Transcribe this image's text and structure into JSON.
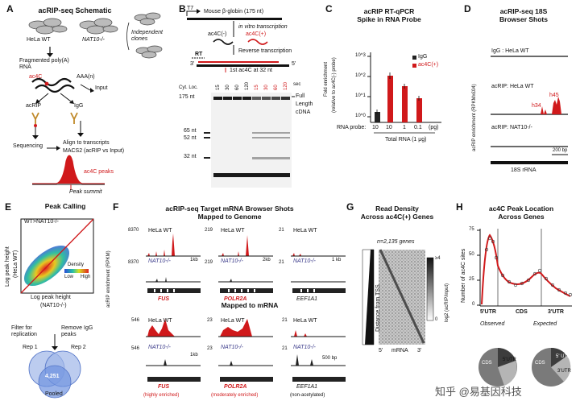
{
  "colors": {
    "red": "#d0191b",
    "black": "#111111",
    "gray": "#888888",
    "blue": "#3b6fd6"
  },
  "panelA": {
    "letter": "A",
    "title": "acRIP-seq Schematic",
    "hela": "HeLa WT",
    "nat10": "NAT10-/-",
    "clones": "Independent clones",
    "fragmented": "Fragmented poly(A) RNA",
    "ac4c": "ac4C",
    "aaa": "AAA(n)",
    "input": "Input",
    "acrip": "acRIP",
    "igg": "IgG",
    "sequencing": "Sequencing",
    "align": "Align to transcripts",
    "macs2": "MACS2 (acRIP vs Input)",
    "peaks": "ac4C peaks",
    "summit": "Peak summit"
  },
  "panelB": {
    "letter": "B",
    "t7": "T7",
    "globin": "Mouse β-globin (175 nt)",
    "invitro": "in vitro transcription",
    "minus": "ac4C(-)",
    "plus": "ac4C(+)",
    "rt": "RT",
    "reverse": "Reverse transcription",
    "three": "3'",
    "five": "5'",
    "first": "1st ac4C at 32 nt",
    "cytloc": "Cyt. Loc.",
    "lanes": [
      "15",
      "30",
      "60",
      "120",
      "15",
      "30",
      "60",
      "120"
    ],
    "sec": "sec",
    "nt175": "175 nt",
    "nt65": "65 nt",
    "nt52": "52 nt",
    "nt32": "32 nt",
    "full": "Full",
    "length": "Length",
    "cdna": "cDNA"
  },
  "panelC": {
    "letter": "C",
    "title1": "acRIP RT-qPCR",
    "title2": "Spike in RNA Probe",
    "ylabel": "Fold enrichment",
    "ylabel2": "(relative to ac4C(-) probe)",
    "legend": [
      "IgG",
      "ac4C(+)"
    ],
    "yticks": [
      "10^3",
      "10^2",
      "10^1",
      "10^0"
    ],
    "probe_label": "RNA probe:",
    "probe_vals": [
      "10",
      "10",
      "1",
      "0.1"
    ],
    "pg": "(pg)",
    "total": "Total RNA (1 μg)"
  },
  "panelD": {
    "letter": "D",
    "title1": "acRIP-seq 18S",
    "title2": "Browser Shots",
    "track1": "IgG : HeLa WT",
    "track2": "acRIP: HeLa WT",
    "track3": "acRIP: NAT10-/-",
    "h34": "h34",
    "h45": "h45",
    "scale": "200 bp",
    "rrna": "18S rRNA",
    "ylabel": "acRIP enrichment (RPKMx£04)"
  },
  "panelE": {
    "letter": "E",
    "title": "Peak Calling",
    "legend": "WT>NAT10-/-",
    "density": "Density",
    "low": "Low",
    "high": "High",
    "ylabel1": "Log peak height",
    "ylabel2": "(HeLa WT)",
    "xlabel1": "Log peak height",
    "xlabel2": "(NAT10-/-)",
    "filter": "Filter for replication",
    "remove": "Remove IgG peaks",
    "rep1": "Rep 1",
    "rep2": "Rep 2",
    "count": "4,251",
    "pooled": "Pooled"
  },
  "panelF": {
    "letter": "F",
    "title1": "acRIP-seq Target mRNA Browser Shots",
    "title2": "Mapped to Genome",
    "title3": "Mapped to mRNA",
    "ylabel": "acRIP enrichment (RPKM)",
    "hela": "HeLa WT",
    "nat10": "NAT10-/-",
    "g1": {
      "max": "8370",
      "scale": "1kb",
      "name": "FUS"
    },
    "g2": {
      "max": "219",
      "scale": "2kb",
      "name": "POLR2A"
    },
    "g3": {
      "max": "21",
      "scale": "1 kb",
      "name": "EEF1A1"
    },
    "m1": {
      "max": "546",
      "scale": "1kb",
      "name": "FUS",
      "note": "(highly enriched)"
    },
    "m2": {
      "max": "23",
      "scale": "",
      "name": "POLR2A",
      "note": "(moderately enriched)"
    },
    "m3": {
      "max": "21",
      "scale": "500 bp",
      "name": "EEF1A1",
      "note": "(non-acetylated)"
    }
  },
  "panelG": {
    "letter": "G",
    "title1": "Read Density",
    "title2": "Across ac4C(+) Genes",
    "n": "n=2,135 genes",
    "ylabel": "Distance from TSS",
    "cbar_top": "≥4",
    "cbar_zero": "0",
    "cbar_label": "log2 (acRIP/input)",
    "five": "5'",
    "mrna": "mRNA",
    "three": "3'"
  },
  "panelH": {
    "letter": "H",
    "title1": "ac4C Peak Location",
    "title2": "Across Genes",
    "ylabel": "Number of ac4C sites",
    "yticks": [
      "75",
      "50",
      "25",
      "0"
    ],
    "x1": "5'UTR",
    "x2": "CDS",
    "x3": "3'UTR",
    "observed": "Observed",
    "expected": "Expected",
    "pie_cds": "CDS",
    "pie_5": "5'UTR",
    "pie_3": "3'UTR",
    "pie_e5": "5' UTR"
  },
  "watermark": "知乎 @易基因科技"
}
